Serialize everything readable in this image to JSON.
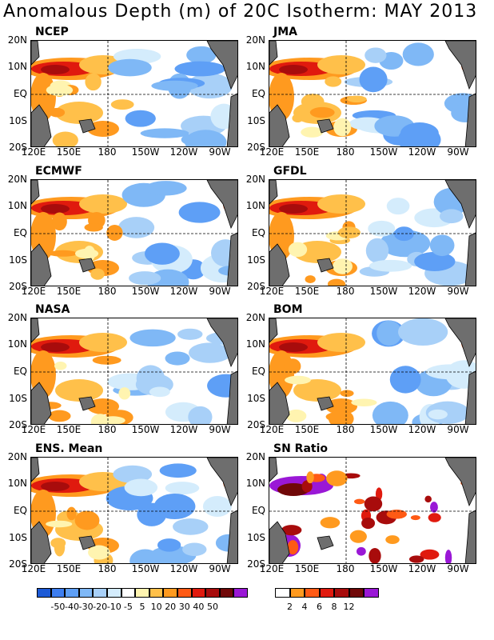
{
  "title": "Anomalous Depth (m) of 20C Isotherm: MAY 2013",
  "lat_labels": [
    "20N",
    "10N",
    "EQ",
    "10S",
    "20S"
  ],
  "lon_labels": [
    "120E",
    "150E",
    "180",
    "150W",
    "120W",
    "90W"
  ],
  "panels": [
    {
      "label": "NCEP"
    },
    {
      "label": "JMA"
    },
    {
      "label": "ECMWF"
    },
    {
      "label": "GFDL"
    },
    {
      "label": "NASA"
    },
    {
      "label": "BOM"
    },
    {
      "label": "ENS. Mean"
    },
    {
      "label": "SN Ratio"
    }
  ],
  "anomaly_colorbar": {
    "labels": [
      "-50",
      "-40",
      "-30",
      "-20",
      "-10",
      "-5",
      "5",
      "10",
      "20",
      "30",
      "40",
      "50"
    ],
    "colors": [
      "#1c5ad6",
      "#3d7ef0",
      "#5e9ff6",
      "#7fb8f6",
      "#a8d0f8",
      "#d4ecfc",
      "#ffffff",
      "#fff4b0",
      "#ffc04a",
      "#ff9a1f",
      "#ff5a14",
      "#e01a0e",
      "#a80c0c",
      "#700808",
      "#9a18d6"
    ]
  },
  "snr_colorbar": {
    "labels": [
      "2",
      "4",
      "6",
      "8",
      "12"
    ],
    "colors": [
      "#ffffff",
      "#ff9a1f",
      "#ff5a14",
      "#e01a0e",
      "#a80c0c",
      "#700808",
      "#9a18d6"
    ]
  },
  "colors": {
    "land": "#6e6e6e",
    "positive": "#ff5a14",
    "negative": "#7fb8f6",
    "snr_high": "#9a18d6"
  }
}
